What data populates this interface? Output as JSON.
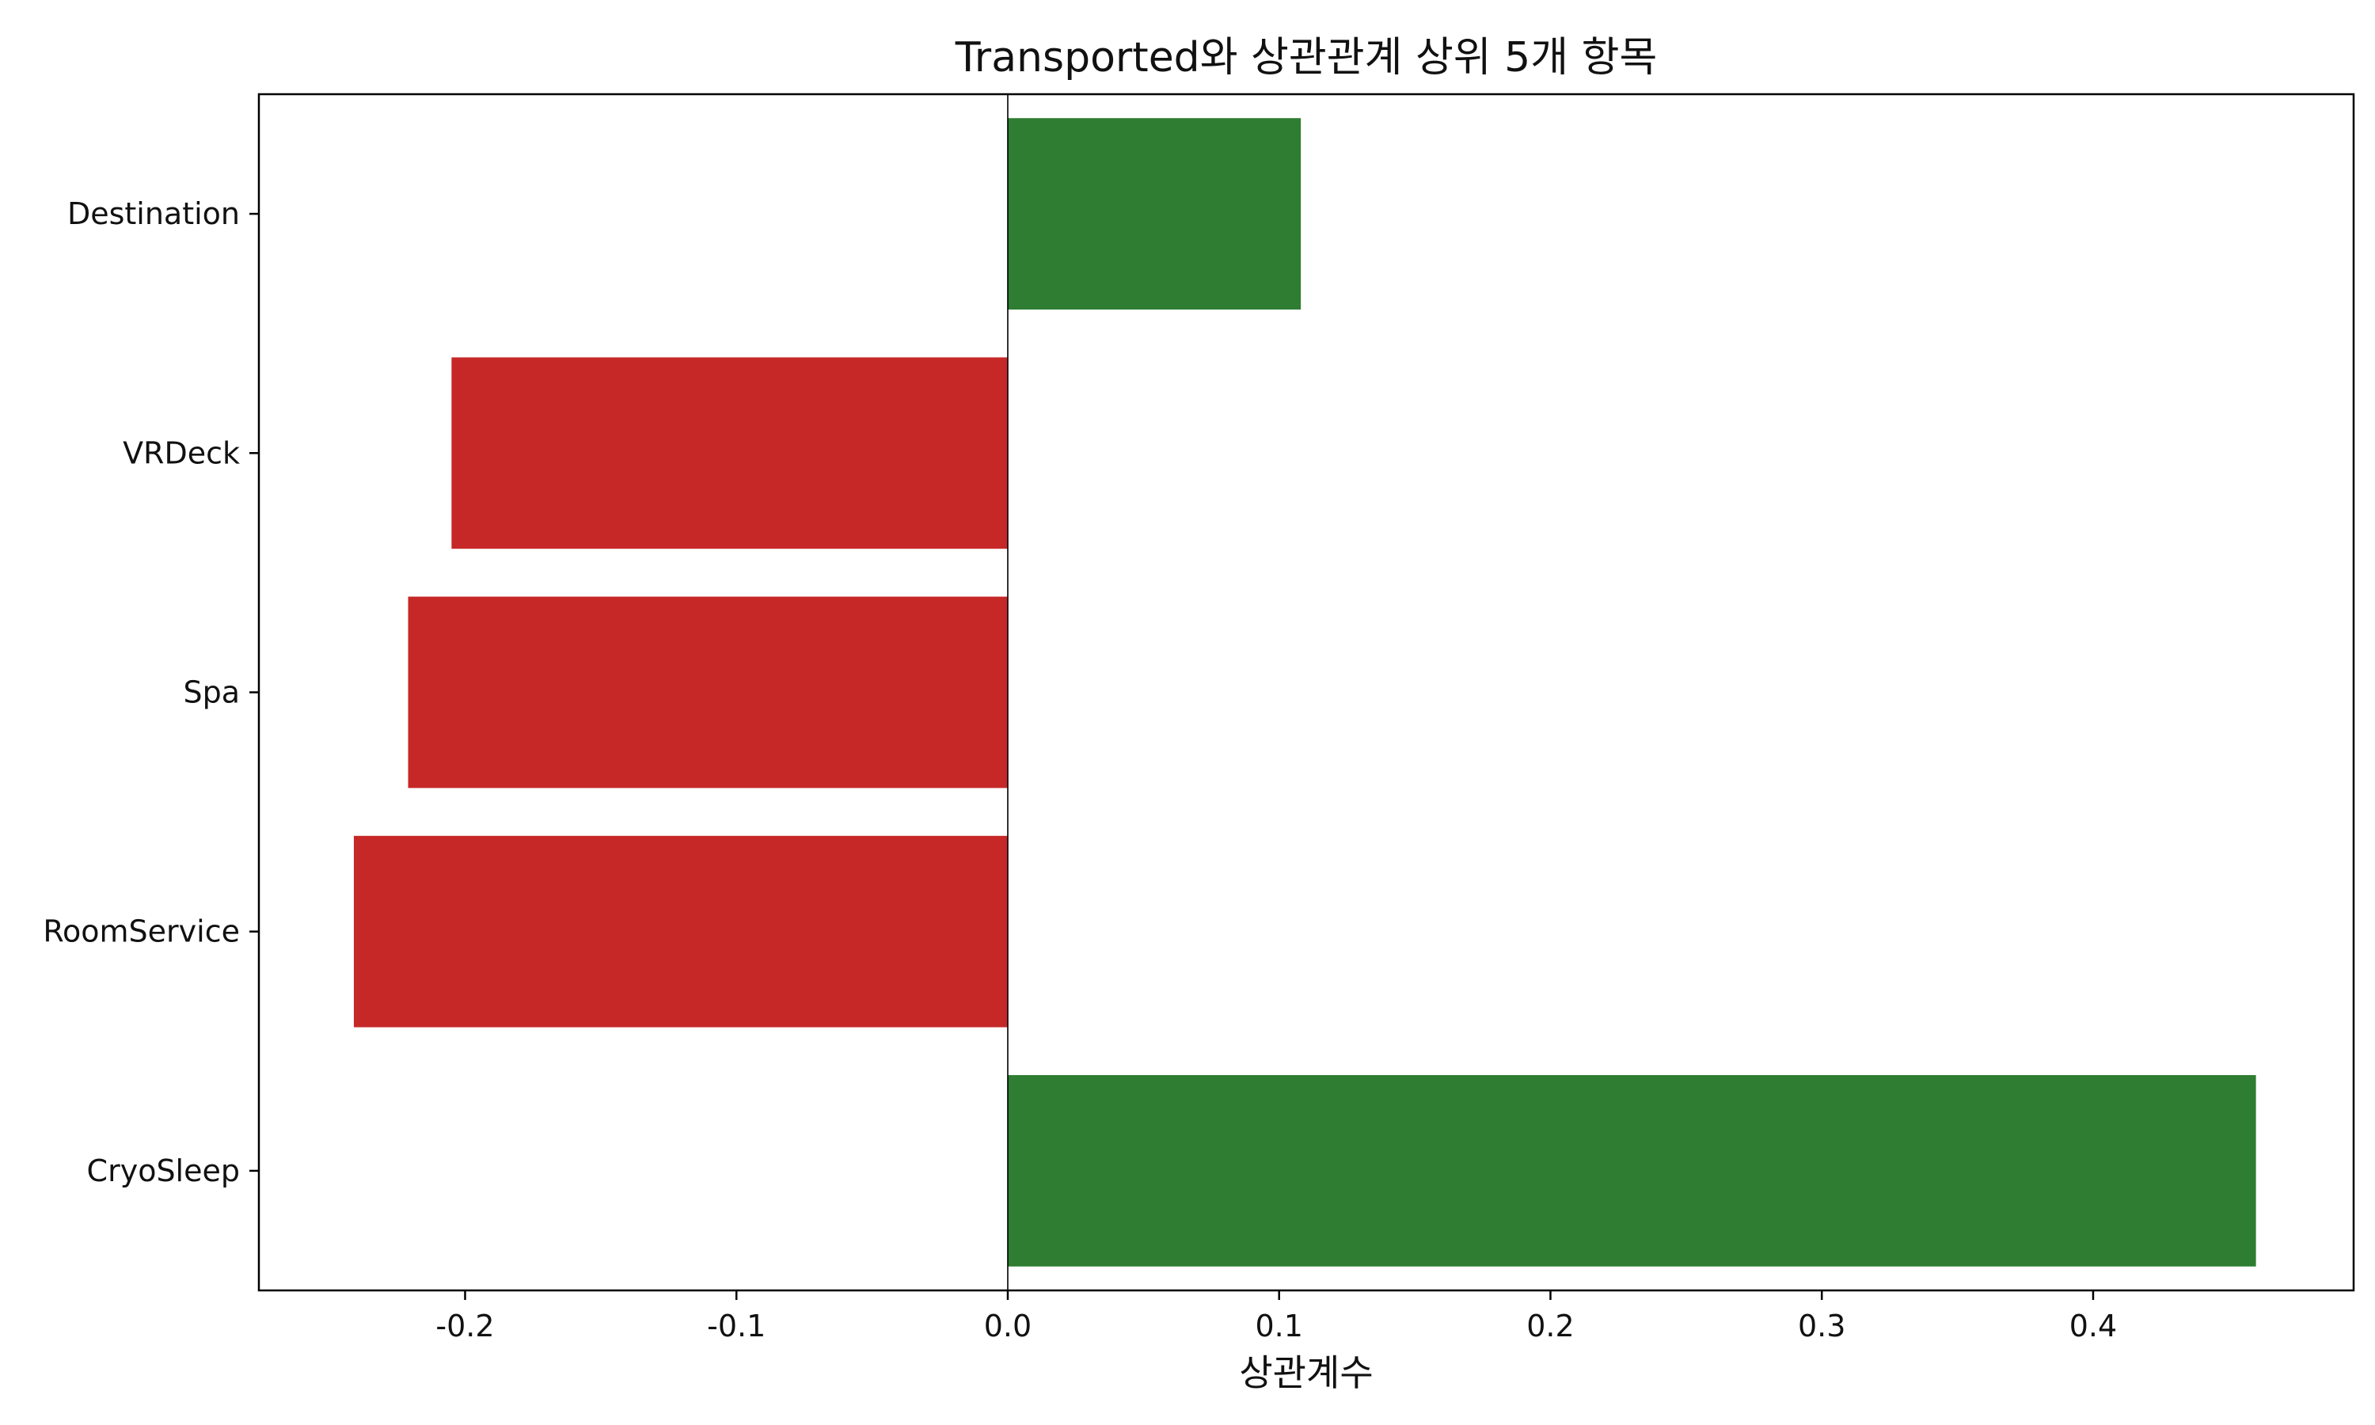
{
  "chart_data": {
    "type": "bar",
    "orientation": "horizontal",
    "title": "Transported와 상관관계 상위 5개 항목",
    "xlabel": "상관계수",
    "ylabel": "",
    "categories": [
      "Destination",
      "VRDeck",
      "Spa",
      "RoomService",
      "CryoSleep"
    ],
    "values": [
      0.108,
      -0.205,
      -0.221,
      -0.241,
      0.46
    ],
    "xlim": [
      -0.276,
      0.496
    ],
    "xticks": [
      -0.2,
      -0.1,
      0.0,
      0.1,
      0.2,
      0.3,
      0.4
    ],
    "xtick_labels": [
      "-0.2",
      "-0.1",
      "0.0",
      "0.1",
      "0.2",
      "0.3",
      "0.4"
    ],
    "grid": false,
    "zero_line": true,
    "colors": {
      "positive": "#2e7d32",
      "negative": "#c62828",
      "axis": "#000000",
      "zero_line": "#000000"
    }
  }
}
